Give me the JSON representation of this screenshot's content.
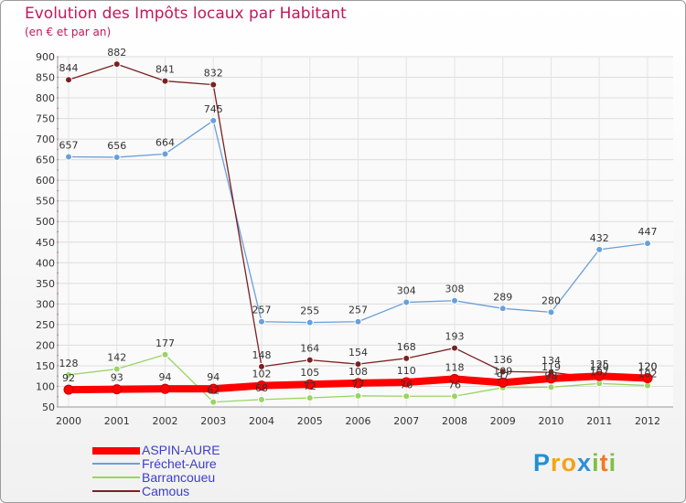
{
  "chart_data": {
    "type": "line",
    "title": "Evolution des Impôts locaux par Habitant",
    "subtitle": "(en € et par an)",
    "x": [
      "2000",
      "2001",
      "2002",
      "2003",
      "2004",
      "2005",
      "2006",
      "2007",
      "2008",
      "2009",
      "2010",
      "2011",
      "2012"
    ],
    "ylim": [
      50,
      900
    ],
    "yticks": [
      50,
      100,
      150,
      200,
      250,
      300,
      350,
      400,
      450,
      500,
      550,
      600,
      650,
      700,
      750,
      800,
      850,
      900
    ],
    "series": [
      {
        "name": "ASPIN-AURE",
        "color": "#ff0000",
        "width": 8,
        "values": [
          92,
          93,
          94,
          94,
          102,
          105,
          108,
          110,
          118,
          109,
          119,
          125,
          120
        ],
        "labels": [
          "92",
          "93",
          "94",
          "94",
          "102",
          "105",
          "108",
          "110",
          "118",
          "109",
          "119",
          "125",
          "120"
        ]
      },
      {
        "name": "Fréchet-Aure",
        "color": "#6a9fd8",
        "width": 1.3,
        "values": [
          657,
          656,
          664,
          745,
          257,
          255,
          257,
          304,
          308,
          289,
          280,
          432,
          447
        ],
        "labels": [
          "657",
          "656",
          "664",
          "745",
          "257",
          "255",
          "257",
          "304",
          "308",
          "289",
          "280",
          "432",
          "447"
        ]
      },
      {
        "name": "Barrancoueu",
        "color": "#9ad464",
        "width": 1.3,
        "values": [
          128,
          142,
          177,
          62,
          68,
          72,
          77,
          76,
          76,
          97,
          98,
          107,
          102
        ],
        "labels": [
          "128",
          "142",
          "177",
          "62",
          "68",
          "72",
          "77",
          "76",
          "76",
          "97",
          "98",
          "107",
          "102"
        ]
      },
      {
        "name": "Camous",
        "color": "#7b2123",
        "width": 1.3,
        "values": [
          844,
          882,
          841,
          832,
          148,
          164,
          154,
          168,
          193,
          136,
          134,
          120,
          120
        ],
        "labels": [
          "844",
          "882",
          "841",
          "832",
          "148",
          "164",
          "154",
          "168",
          "193",
          "136",
          "134",
          "120",
          "120"
        ]
      }
    ]
  },
  "logo": {
    "letters": [
      "P",
      "r",
      "o",
      "x",
      "i",
      "t",
      "i"
    ],
    "colors": [
      "#1e90d8",
      "#f5a21a",
      "#f5a21a",
      "#2f8fd4",
      "#7cc242",
      "#f07a1f",
      "#7cc242"
    ]
  }
}
